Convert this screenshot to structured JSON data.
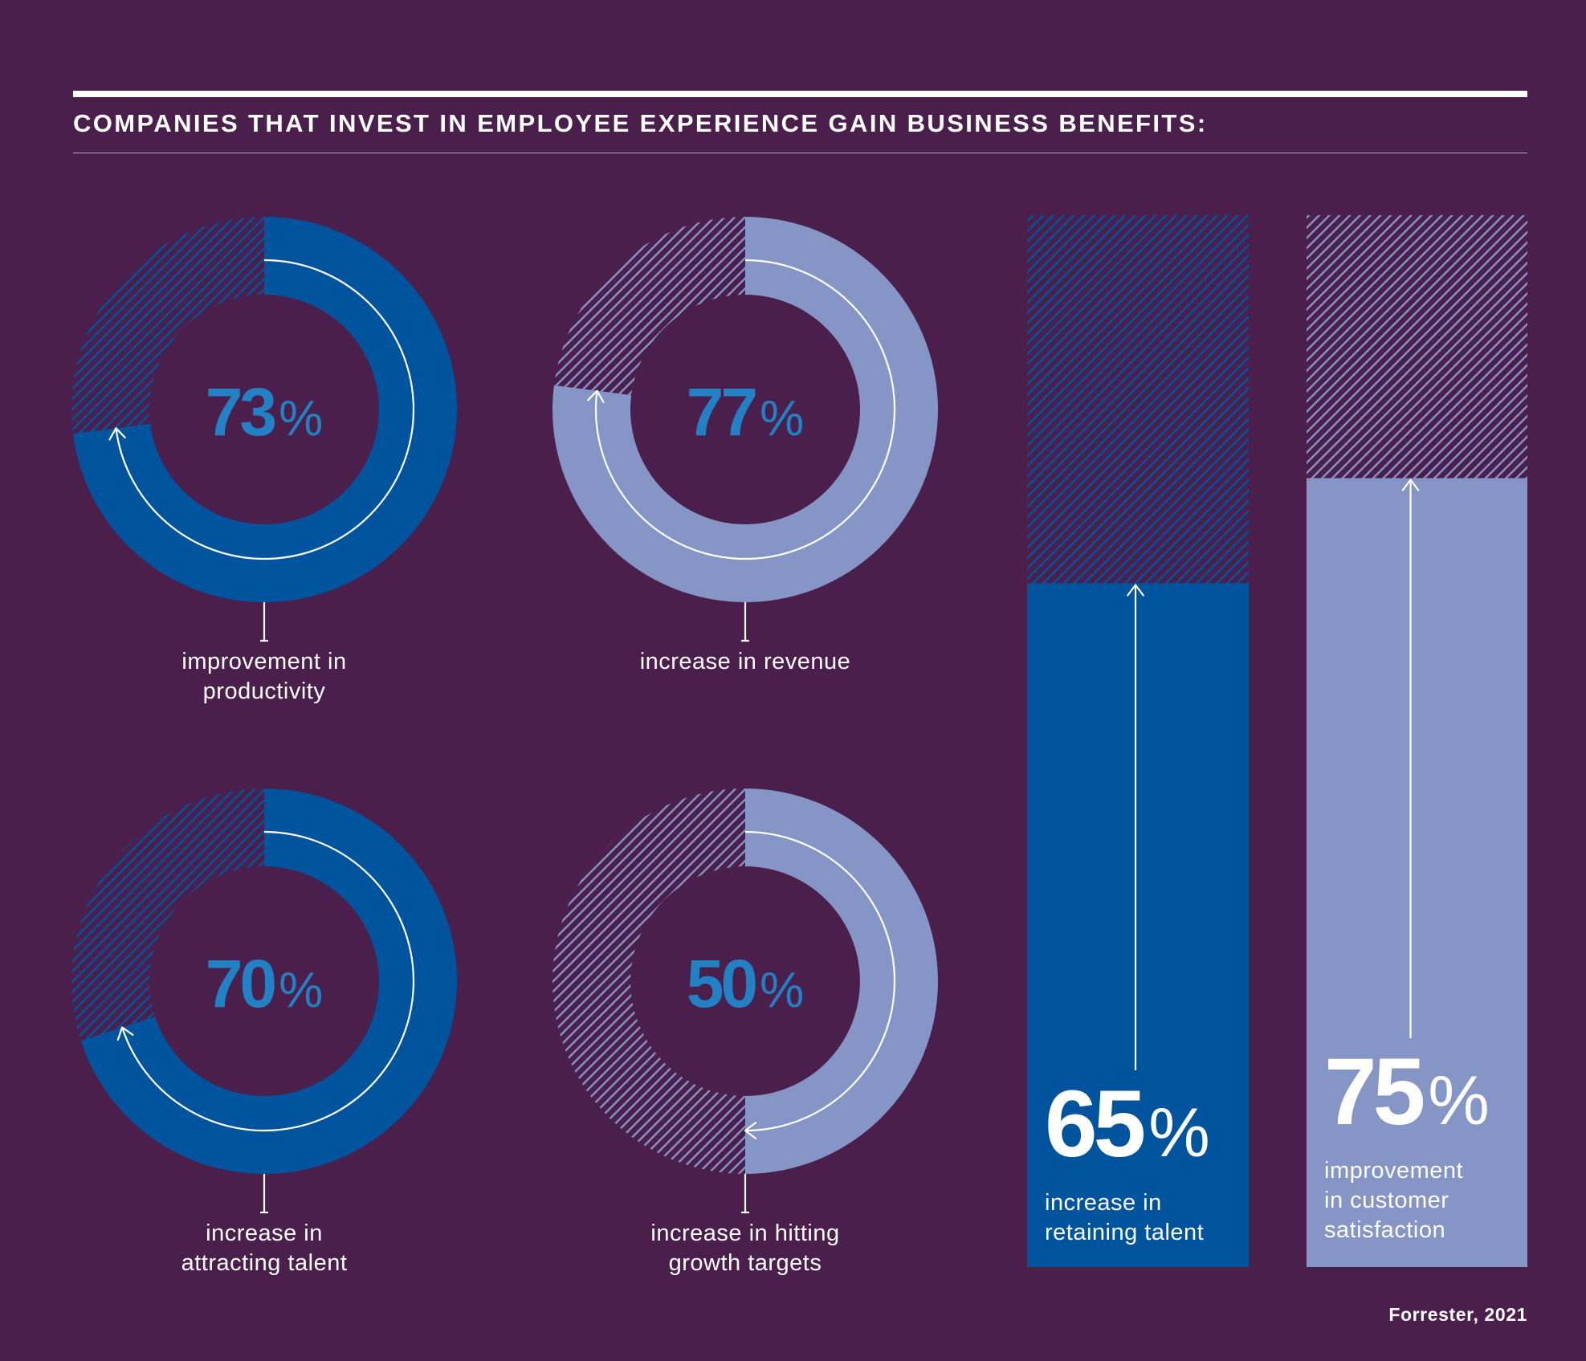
{
  "title": "COMPANIES THAT INVEST IN EMPLOYEE EXPERIENCE GAIN BUSINESS BENEFITS:",
  "source": "Forrester, 2021",
  "colors": {
    "background": "#4b1f4c",
    "dark_blue": "#00549e",
    "light_blue": "#8595c6",
    "percent_text": "#2181c4",
    "white": "#ffffff"
  },
  "chart_data": [
    {
      "type": "pie",
      "variant": "donut",
      "value": 73,
      "unit": "%",
      "color": "dark",
      "label": [
        "improvement in",
        "productivity"
      ]
    },
    {
      "type": "pie",
      "variant": "donut",
      "value": 77,
      "unit": "%",
      "color": "light",
      "label": [
        "increase in revenue"
      ]
    },
    {
      "type": "pie",
      "variant": "donut",
      "value": 70,
      "unit": "%",
      "color": "dark",
      "label": [
        "increase in",
        "attracting talent"
      ]
    },
    {
      "type": "pie",
      "variant": "donut",
      "value": 50,
      "unit": "%",
      "color": "light",
      "label": [
        "increase in hitting",
        "growth targets"
      ]
    },
    {
      "type": "bar",
      "orientation": "vertical",
      "value": 65,
      "unit": "%",
      "ylim": [
        0,
        100
      ],
      "color": "dark",
      "label": [
        "increase in",
        "retaining talent"
      ]
    },
    {
      "type": "bar",
      "orientation": "vertical",
      "value": 75,
      "unit": "%",
      "ylim": [
        0,
        100
      ],
      "color": "light",
      "label": [
        "improvement",
        "in customer",
        "satisfaction"
      ]
    }
  ]
}
